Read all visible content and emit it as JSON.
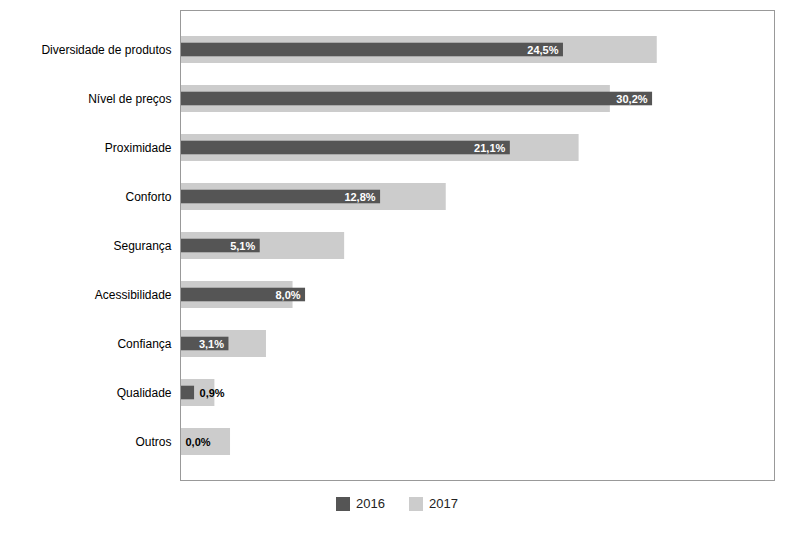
{
  "chart_data": {
    "type": "bar",
    "orientation": "horizontal",
    "categories": [
      "Outros",
      "Qualidade",
      "Confiança",
      "Acessibilidade",
      "Segurança",
      "Conforto",
      "Proximidade",
      "Nível de preços",
      "Diversidade de produtos"
    ],
    "series": [
      {
        "name": "2016",
        "color": "#555555",
        "values": [
          0.0,
          0.9,
          3.1,
          8.0,
          5.1,
          12.8,
          21.1,
          30.2,
          24.5
        ],
        "value_labels": [
          "0,0%",
          "0,9%",
          "3,1%",
          "8,0%",
          "5,1%",
          "12,8%",
          "21,1%",
          "30,2%",
          "24,5%"
        ],
        "data_labels": true
      },
      {
        "name": "2017",
        "color": "#cccccc",
        "values": [
          3.2,
          2.2,
          5.5,
          7.2,
          10.5,
          17.0,
          25.5,
          27.5,
          30.5
        ]
      }
    ],
    "xlim": [
      0,
      38
    ],
    "tick_labels": "y",
    "legend": "bottom"
  }
}
